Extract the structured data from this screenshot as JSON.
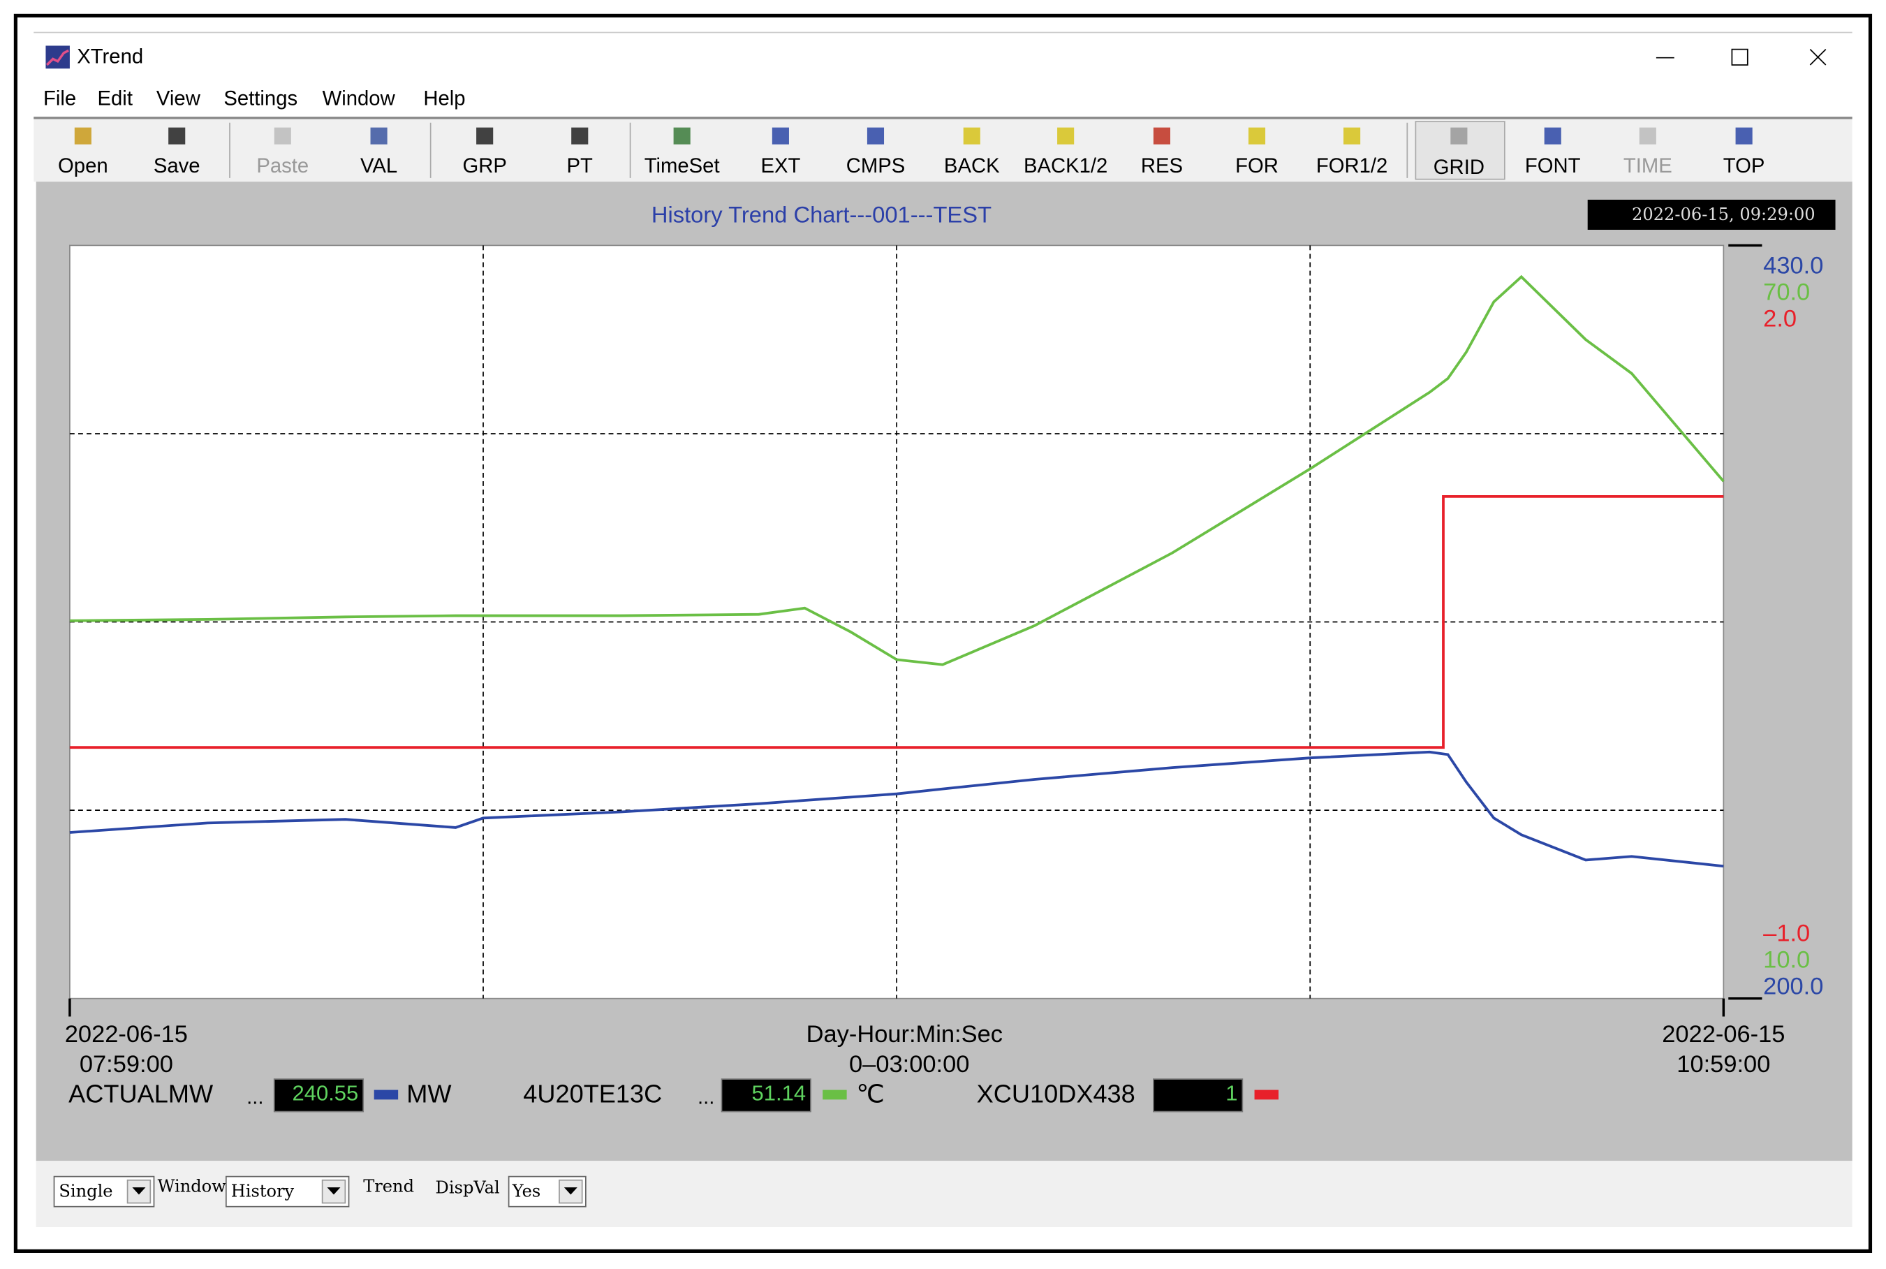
{
  "window": {
    "title": "XTrend"
  },
  "menu": [
    "File",
    "Edit",
    "View",
    "Settings",
    "Window",
    "Help"
  ],
  "toolbar": [
    {
      "label": "Open",
      "enabled": true
    },
    {
      "label": "Save",
      "enabled": true
    },
    {
      "label": "Paste",
      "enabled": false
    },
    {
      "label": "VAL",
      "enabled": true
    },
    {
      "label": "GRP",
      "enabled": true
    },
    {
      "label": "PT",
      "enabled": true
    },
    {
      "label": "TimeSet",
      "enabled": true
    },
    {
      "label": "EXT",
      "enabled": true
    },
    {
      "label": "CMPS",
      "enabled": true
    },
    {
      "label": "BACK",
      "enabled": true
    },
    {
      "label": "BACK1/2",
      "enabled": true
    },
    {
      "label": "RES",
      "enabled": true
    },
    {
      "label": "FOR",
      "enabled": true
    },
    {
      "label": "FOR1/2",
      "enabled": true
    },
    {
      "label": "GRID",
      "enabled": true,
      "pressed": true
    },
    {
      "label": "FONT",
      "enabled": true
    },
    {
      "label": "TIME",
      "enabled": false
    },
    {
      "label": "TOP",
      "enabled": true
    }
  ],
  "chart": {
    "type": "line",
    "title": "History Trend Chart---001---TEST",
    "timestamp": "2022-06-15, 09:29:00",
    "x": [
      0,
      15,
      30,
      42,
      45,
      60,
      75,
      80,
      85,
      90,
      95,
      105,
      120,
      135,
      148,
      150,
      152,
      155,
      158,
      165,
      170,
      180
    ],
    "xlim": [
      0,
      180
    ],
    "start_label": [
      "2022-06-15",
      "07:59:00"
    ],
    "end_label": [
      "2022-06-15",
      "10:59:00"
    ],
    "span_label": [
      "Day-Hour:Min:Sec",
      "0–03:00:00"
    ],
    "grid_divisions": 4,
    "series": [
      {
        "name": "ACTUALMW",
        "prefix": "...",
        "current": 240.55,
        "unit": "MW",
        "color": "#2b47a6",
        "ylim": [
          200,
          430
        ],
        "yticks": [
          {
            "value": 200,
            "label": "200.0"
          },
          {
            "value": 430,
            "label": "430.0"
          }
        ],
        "values": [
          250.7,
          253.6,
          254.7,
          252.2,
          255.1,
          257.0,
          259.5,
          260.5,
          261.5,
          262.5,
          264.0,
          266.9,
          270.5,
          273.5,
          275.3,
          274.5,
          266.1,
          255.1,
          250.0,
          242.3,
          243.4,
          240.4
        ]
      },
      {
        "name": "4U20TE13C",
        "prefix": "...",
        "current": 51.14,
        "unit": "℃",
        "color": "#6abf45",
        "ylim": [
          10,
          70
        ],
        "yticks": [
          {
            "value": 10,
            "label": "10.0"
          },
          {
            "value": 70,
            "label": "70.0"
          }
        ],
        "values": [
          40.1,
          40.2,
          40.4,
          40.5,
          40.5,
          40.5,
          40.6,
          41.1,
          39.2,
          37.0,
          36.6,
          39.7,
          45.5,
          52.2,
          58.3,
          59.4,
          61.5,
          65.5,
          67.5,
          62.5,
          59.8,
          51.2
        ]
      },
      {
        "name": "XCU10DX438",
        "current": 1,
        "color": "#e8202a",
        "ylim": [
          -1,
          2
        ],
        "yticks": [
          {
            "value": -1,
            "label": "–1.0"
          },
          {
            "value": 2,
            "label": "2.0"
          }
        ],
        "x": [
          0,
          149.5,
          149.5,
          180
        ],
        "values": [
          0,
          0,
          1,
          1
        ]
      }
    ]
  },
  "status_bar": {
    "mode": "Single",
    "window_label": "Window",
    "window": "History",
    "trend_label": "Trend",
    "dispval_label": "DispVal",
    "dispval": "Yes"
  }
}
